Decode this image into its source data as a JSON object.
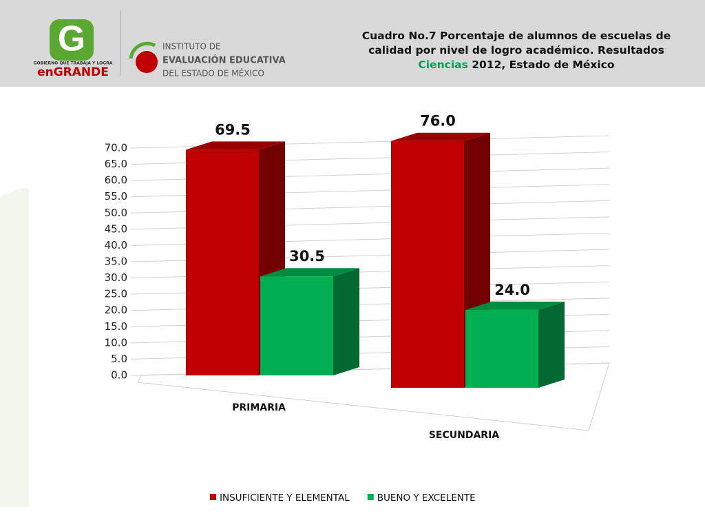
{
  "header": {
    "logo_tagline": "GOBIERNO QUE TRABAJA Y LOGRA",
    "logo_brand": "enGRANDE",
    "institute": [
      "INSTITUTO DE",
      "EVALUACIÓN EDUCATIVA",
      "DEL ESTADO DE MÉXICO"
    ]
  },
  "chart_data": {
    "type": "bar3d",
    "title": [
      "Cuadro No.7 Porcentaje de alumnos de escuelas de calidad por nivel de logro académico. Resultados ",
      "Ciencias",
      " 2012, Estado de México"
    ],
    "categories": [
      "PRIMARIA",
      "SECUNDARIA"
    ],
    "series": [
      {
        "name": "INSUFICIENTE Y ELEMENTAL",
        "color": "#c00000",
        "values": [
          69.5,
          76.0
        ],
        "value_labels": [
          "69.5",
          "76.0"
        ]
      },
      {
        "name": "BUENO Y EXCELENTE",
        "color": "#00b050",
        "values": [
          30.5,
          24.0
        ],
        "value_labels": [
          "30.5",
          "24.0"
        ]
      }
    ],
    "ylim": [
      0,
      70
    ],
    "yticks": [
      {
        "value": 0,
        "label": "0.0"
      },
      {
        "value": 5,
        "label": "5.0"
      },
      {
        "value": 10,
        "label": "10.0"
      },
      {
        "value": 15,
        "label": "15.0"
      },
      {
        "value": 20,
        "label": "20.0"
      },
      {
        "value": 25,
        "label": "25.0"
      },
      {
        "value": 30,
        "label": "30.0"
      },
      {
        "value": 35,
        "label": "35.0"
      },
      {
        "value": 40,
        "label": "40.0"
      },
      {
        "value": 45,
        "label": "45.0"
      },
      {
        "value": 50,
        "label": "50.0"
      },
      {
        "value": 55,
        "label": "55.0"
      },
      {
        "value": 60,
        "label": "60.0"
      },
      {
        "value": 65,
        "label": "65.0"
      },
      {
        "value": 70,
        "label": "70.0"
      }
    ],
    "grid": true,
    "legend": "bottom"
  }
}
